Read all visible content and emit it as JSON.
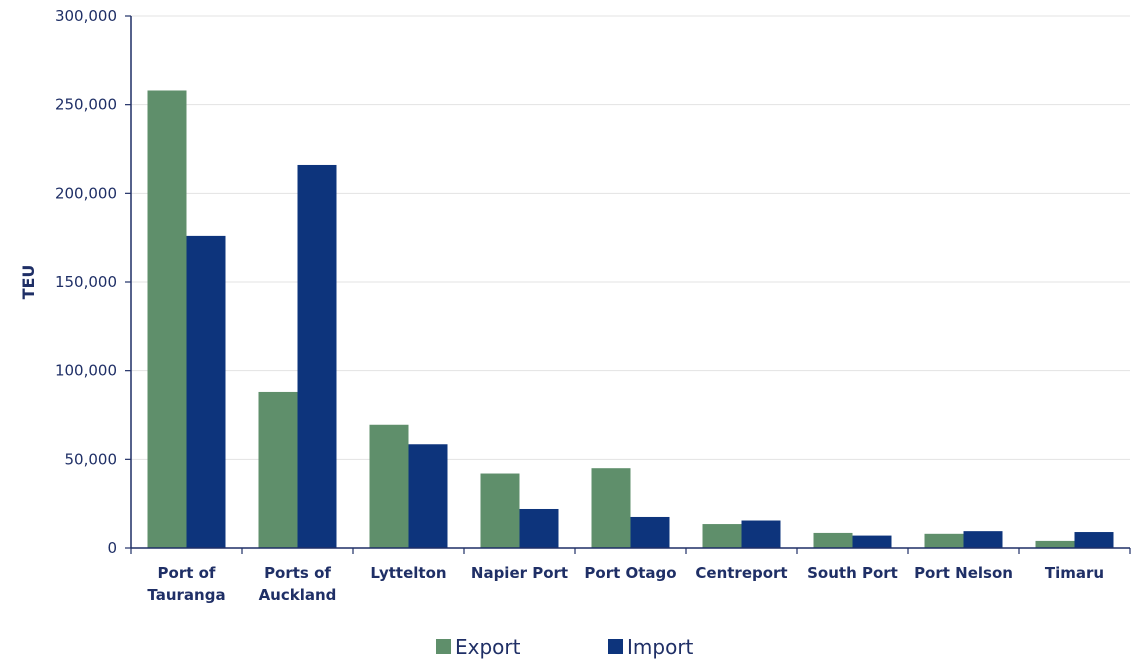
{
  "chart_data": {
    "type": "bar",
    "title": "",
    "xlabel": "",
    "ylabel": "TEU",
    "ylim": [
      0,
      300000
    ],
    "yticks": [
      0,
      50000,
      100000,
      150000,
      200000,
      250000,
      300000
    ],
    "ytick_labels": [
      "0",
      "50,000",
      "100,000",
      "150,000",
      "200,000",
      "250,000",
      "300,000"
    ],
    "categories": [
      [
        "Port of",
        "Tauranga"
      ],
      [
        "Ports of",
        "Auckland"
      ],
      [
        "Lyttelton"
      ],
      [
        "Napier Port"
      ],
      [
        "Port Otago"
      ],
      [
        "Centreport"
      ],
      [
        "South Port"
      ],
      [
        "Port Nelson"
      ],
      [
        "Timaru"
      ]
    ],
    "series": [
      {
        "name": "Export",
        "color": "#5f8f6b",
        "values": [
          258000,
          88000,
          69500,
          42000,
          45000,
          13500,
          8500,
          8000,
          4000
        ]
      },
      {
        "name": "Import",
        "color": "#0d347c",
        "values": [
          176000,
          216000,
          58500,
          22000,
          17500,
          15500,
          7000,
          9500,
          9000
        ]
      }
    ],
    "grid": true,
    "legend": "bottom"
  }
}
